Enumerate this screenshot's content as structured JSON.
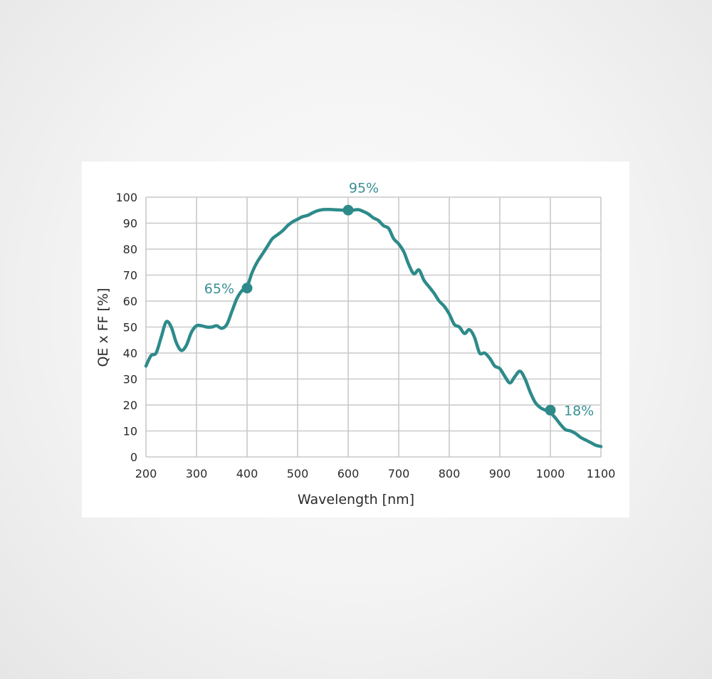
{
  "chart_data": {
    "type": "line",
    "xlabel": "Wavelength [nm]",
    "ylabel": "QE x FF [%]",
    "xlim": [
      200,
      1100
    ],
    "ylim": [
      0,
      100
    ],
    "x_ticks": [
      200,
      300,
      400,
      500,
      600,
      700,
      800,
      900,
      1000,
      1100
    ],
    "y_ticks": [
      0,
      10,
      20,
      30,
      40,
      50,
      60,
      70,
      80,
      90,
      100
    ],
    "grid": true,
    "line_color": "#2e8a8a",
    "label_color": "#3a8f95",
    "grid_color": "#c9c9c9",
    "series": [
      {
        "x": [
          200,
          210,
          220,
          230,
          240,
          250,
          260,
          270,
          280,
          290,
          300,
          310,
          320,
          330,
          340,
          350,
          360,
          370,
          380,
          390,
          400,
          410,
          420,
          430,
          440,
          450,
          460,
          470,
          480,
          490,
          500,
          510,
          520,
          530,
          540,
          550,
          560,
          570,
          580,
          590,
          600,
          610,
          620,
          630,
          640,
          650,
          660,
          670,
          680,
          690,
          700,
          710,
          720,
          730,
          740,
          750,
          760,
          770,
          780,
          790,
          800,
          810,
          820,
          830,
          840,
          850,
          860,
          870,
          880,
          890,
          900,
          910,
          920,
          930,
          940,
          950,
          960,
          970,
          980,
          990,
          1000,
          1010,
          1020,
          1030,
          1040,
          1050,
          1060,
          1070,
          1080,
          1090,
          1100
        ],
        "y": [
          35,
          39,
          40,
          46,
          52,
          50,
          44,
          41,
          43,
          48,
          50.5,
          50.5,
          50,
          50,
          50.5,
          49.5,
          51,
          56,
          61,
          64,
          65.5,
          71,
          75,
          78,
          81,
          84,
          85.5,
          87,
          89,
          90.5,
          91.5,
          92.5,
          93,
          94,
          94.8,
          95.2,
          95.3,
          95.2,
          95.1,
          95,
          95,
          95,
          95.2,
          94.5,
          93.5,
          92,
          91,
          89,
          88,
          84,
          82,
          79,
          74,
          70.5,
          72,
          68,
          65.5,
          63,
          60,
          58,
          55,
          51,
          50,
          47.5,
          49,
          46,
          40,
          40,
          38,
          35,
          34,
          31,
          28.5,
          31,
          33,
          30,
          25,
          21,
          19,
          18,
          17,
          15,
          12.5,
          10.5,
          10,
          9,
          7.5,
          6.5,
          5.5,
          4.5,
          4
        ]
      }
    ],
    "annotations": [
      {
        "x": 400,
        "y": 65,
        "label": "65%",
        "position": "left"
      },
      {
        "x": 600,
        "y": 95,
        "label": "95%",
        "position": "above"
      },
      {
        "x": 1000,
        "y": 18,
        "label": "18%",
        "position": "right"
      }
    ]
  }
}
